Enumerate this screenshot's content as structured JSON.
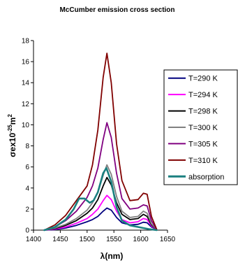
{
  "chart_data": {
    "type": "line",
    "title": "McCumber emission cross section",
    "xlabel": "λ(nm)",
    "ylabel": {
      "main": "σe",
      "mid": "x10",
      "exp": "-25",
      "unit": "m",
      "unit_exp": "2"
    },
    "xlim": [
      1400,
      1650
    ],
    "ylim": [
      0,
      18
    ],
    "xticks": [
      "1400",
      "1450",
      "1500",
      "1550",
      "1600",
      "1650"
    ],
    "yticks": [
      "0",
      "2",
      "4",
      "6",
      "8",
      "10",
      "12",
      "14",
      "16",
      "18"
    ],
    "legend_position": "right",
    "series": [
      {
        "name": "T=290 K",
        "color": "#00007f",
        "x": [
          1420,
          1440,
          1460,
          1480,
          1500,
          1510,
          1520,
          1530,
          1537,
          1545,
          1555,
          1565,
          1580,
          1595,
          1605,
          1612,
          1620,
          1630
        ],
        "y": [
          0.0,
          0.05,
          0.2,
          0.45,
          0.8,
          1.0,
          1.3,
          1.8,
          2.1,
          1.9,
          1.2,
          0.7,
          0.5,
          0.55,
          0.75,
          0.7,
          0.3,
          0.05
        ]
      },
      {
        "name": "T=294 K",
        "color": "#ff00ff",
        "x": [
          1420,
          1440,
          1460,
          1480,
          1500,
          1510,
          1520,
          1530,
          1537,
          1545,
          1555,
          1565,
          1580,
          1595,
          1605,
          1612,
          1620,
          1630
        ],
        "y": [
          0.0,
          0.1,
          0.3,
          0.65,
          1.1,
          1.5,
          2.0,
          2.8,
          3.3,
          2.9,
          1.8,
          1.0,
          0.7,
          0.8,
          1.1,
          1.0,
          0.4,
          0.05
        ]
      },
      {
        "name": "T=298 K",
        "color": "#000000",
        "x": [
          1420,
          1440,
          1460,
          1480,
          1500,
          1510,
          1520,
          1530,
          1537,
          1545,
          1555,
          1565,
          1580,
          1595,
          1605,
          1612,
          1620,
          1630
        ],
        "y": [
          0.0,
          0.15,
          0.45,
          0.9,
          1.6,
          2.1,
          2.9,
          4.2,
          5.0,
          4.3,
          2.6,
          1.5,
          1.0,
          1.1,
          1.5,
          1.3,
          0.5,
          0.05
        ]
      },
      {
        "name": "T=300 K",
        "color": "#808080",
        "x": [
          1420,
          1440,
          1460,
          1480,
          1500,
          1510,
          1520,
          1530,
          1537,
          1545,
          1555,
          1565,
          1580,
          1595,
          1605,
          1612,
          1620,
          1630
        ],
        "y": [
          0.0,
          0.2,
          0.55,
          1.1,
          1.9,
          2.6,
          3.6,
          5.2,
          6.2,
          5.3,
          3.2,
          1.8,
          1.2,
          1.3,
          1.8,
          1.6,
          0.6,
          0.05
        ]
      },
      {
        "name": "T=305 K",
        "color": "#800080",
        "x": [
          1420,
          1440,
          1460,
          1480,
          1500,
          1510,
          1520,
          1530,
          1537,
          1545,
          1555,
          1565,
          1580,
          1595,
          1605,
          1612,
          1620,
          1630
        ],
        "y": [
          0.0,
          0.3,
          0.9,
          1.8,
          3.1,
          4.2,
          5.9,
          8.6,
          10.2,
          8.8,
          5.4,
          3.0,
          2.0,
          2.1,
          2.4,
          2.3,
          0.9,
          0.05
        ]
      },
      {
        "name": "T=310 K",
        "color": "#800000",
        "x": [
          1420,
          1440,
          1460,
          1480,
          1500,
          1510,
          1520,
          1530,
          1537,
          1545,
          1555,
          1565,
          1580,
          1595,
          1605,
          1612,
          1620,
          1630
        ],
        "y": [
          0.0,
          0.5,
          1.4,
          2.8,
          4.2,
          6.2,
          9.5,
          14.5,
          16.8,
          14.0,
          8.2,
          4.7,
          2.8,
          2.9,
          3.5,
          3.4,
          1.3,
          0.05
        ]
      },
      {
        "name": "absorption",
        "color": "#1a8080",
        "x": [
          1420,
          1440,
          1460,
          1475,
          1485,
          1495,
          1505,
          1512,
          1520,
          1530,
          1536,
          1545,
          1555,
          1565,
          1580,
          1595,
          1605,
          1615,
          1630
        ],
        "y": [
          0.0,
          0.3,
          1.0,
          2.0,
          3.0,
          3.0,
          2.6,
          2.8,
          3.6,
          5.4,
          5.9,
          4.6,
          2.2,
          0.9,
          0.45,
          0.3,
          0.2,
          0.1,
          0.0
        ]
      }
    ]
  }
}
